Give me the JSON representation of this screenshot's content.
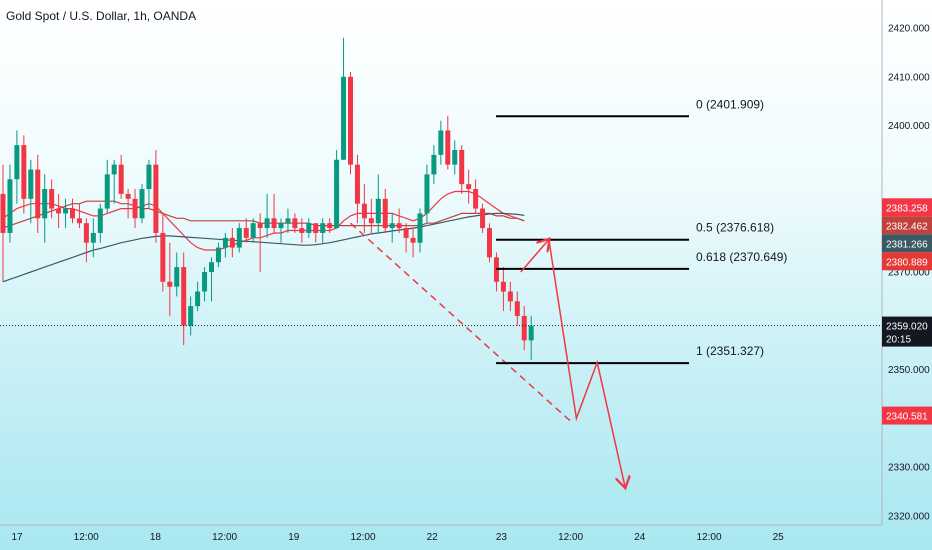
{
  "header": {
    "symbol": "Gold Spot / U.S. Dollar, 1h, OANDA"
  },
  "chart_data": {
    "type": "candlestick",
    "title": "Gold Spot / U.S. Dollar, 1h, OANDA",
    "ylim": [
      2320,
      2422
    ],
    "grid": false,
    "x_ticks": [
      "17",
      "12:00",
      "18",
      "12:00",
      "19",
      "12:00",
      "22",
      "23",
      "12:00",
      "24",
      "12:00",
      "25"
    ],
    "y_ticks": [
      "2420.000",
      "2410.000",
      "2400.000",
      "2370.000",
      "2350.000",
      "2330.000",
      "2320.000"
    ],
    "candles": [
      {
        "o": 2386,
        "h": 2392,
        "l": 2368,
        "c": 2378
      },
      {
        "o": 2378,
        "h": 2392,
        "l": 2376,
        "c": 2389
      },
      {
        "o": 2389,
        "h": 2399,
        "l": 2384,
        "c": 2396
      },
      {
        "o": 2396,
        "h": 2398,
        "l": 2382,
        "c": 2385
      },
      {
        "o": 2385,
        "h": 2393,
        "l": 2380,
        "c": 2391
      },
      {
        "o": 2391,
        "h": 2394,
        "l": 2378,
        "c": 2381
      },
      {
        "o": 2381,
        "h": 2390,
        "l": 2376,
        "c": 2387
      },
      {
        "o": 2387,
        "h": 2389,
        "l": 2381,
        "c": 2383
      },
      {
        "o": 2383,
        "h": 2386,
        "l": 2379,
        "c": 2382
      },
      {
        "o": 2382,
        "h": 2385,
        "l": 2379,
        "c": 2383
      },
      {
        "o": 2383,
        "h": 2385,
        "l": 2380,
        "c": 2381
      },
      {
        "o": 2381,
        "h": 2384,
        "l": 2379,
        "c": 2380
      },
      {
        "o": 2380,
        "h": 2381,
        "l": 2372,
        "c": 2376
      },
      {
        "o": 2376,
        "h": 2381,
        "l": 2373,
        "c": 2378
      },
      {
        "o": 2378,
        "h": 2384,
        "l": 2376,
        "c": 2383
      },
      {
        "o": 2383,
        "h": 2393,
        "l": 2382,
        "c": 2390
      },
      {
        "o": 2390,
        "h": 2393,
        "l": 2384,
        "c": 2392
      },
      {
        "o": 2392,
        "h": 2394,
        "l": 2385,
        "c": 2386
      },
      {
        "o": 2386,
        "h": 2387,
        "l": 2381,
        "c": 2385
      },
      {
        "o": 2385,
        "h": 2387,
        "l": 2379,
        "c": 2381
      },
      {
        "o": 2381,
        "h": 2388,
        "l": 2380,
        "c": 2387
      },
      {
        "o": 2387,
        "h": 2393,
        "l": 2383,
        "c": 2392
      },
      {
        "o": 2392,
        "h": 2395,
        "l": 2376,
        "c": 2378
      },
      {
        "o": 2378,
        "h": 2382,
        "l": 2366,
        "c": 2368
      },
      {
        "o": 2368,
        "h": 2376,
        "l": 2361,
        "c": 2367
      },
      {
        "o": 2367,
        "h": 2374,
        "l": 2365,
        "c": 2371
      },
      {
        "o": 2371,
        "h": 2374,
        "l": 2355,
        "c": 2359
      },
      {
        "o": 2359,
        "h": 2365,
        "l": 2357,
        "c": 2363
      },
      {
        "o": 2363,
        "h": 2368,
        "l": 2362,
        "c": 2366
      },
      {
        "o": 2366,
        "h": 2371,
        "l": 2364,
        "c": 2370
      },
      {
        "o": 2370,
        "h": 2373,
        "l": 2364,
        "c": 2372
      },
      {
        "o": 2372,
        "h": 2376,
        "l": 2371,
        "c": 2375
      },
      {
        "o": 2375,
        "h": 2378,
        "l": 2373,
        "c": 2377
      },
      {
        "o": 2377,
        "h": 2379,
        "l": 2373,
        "c": 2375
      },
      {
        "o": 2375,
        "h": 2380,
        "l": 2374,
        "c": 2379
      },
      {
        "o": 2379,
        "h": 2381,
        "l": 2376,
        "c": 2377
      },
      {
        "o": 2377,
        "h": 2381,
        "l": 2376,
        "c": 2380
      },
      {
        "o": 2380,
        "h": 2382,
        "l": 2370,
        "c": 2379
      },
      {
        "o": 2379,
        "h": 2386,
        "l": 2377,
        "c": 2381
      },
      {
        "o": 2381,
        "h": 2386,
        "l": 2378,
        "c": 2379
      },
      {
        "o": 2379,
        "h": 2381,
        "l": 2376,
        "c": 2380
      },
      {
        "o": 2380,
        "h": 2383,
        "l": 2378,
        "c": 2381
      },
      {
        "o": 2381,
        "h": 2382,
        "l": 2378,
        "c": 2379
      },
      {
        "o": 2379,
        "h": 2381,
        "l": 2376,
        "c": 2378
      },
      {
        "o": 2378,
        "h": 2381,
        "l": 2377,
        "c": 2380
      },
      {
        "o": 2380,
        "h": 2380,
        "l": 2376,
        "c": 2378
      },
      {
        "o": 2378,
        "h": 2381,
        "l": 2376,
        "c": 2380
      },
      {
        "o": 2380,
        "h": 2381,
        "l": 2378,
        "c": 2379
      },
      {
        "o": 2379,
        "h": 2395,
        "l": 2379,
        "c": 2393
      },
      {
        "o": 2393,
        "h": 2418,
        "l": 2393,
        "c": 2410
      },
      {
        "o": 2410,
        "h": 2411,
        "l": 2390,
        "c": 2392
      },
      {
        "o": 2392,
        "h": 2394,
        "l": 2380,
        "c": 2384
      },
      {
        "o": 2384,
        "h": 2388,
        "l": 2378,
        "c": 2381
      },
      {
        "o": 2381,
        "h": 2385,
        "l": 2378,
        "c": 2380
      },
      {
        "o": 2380,
        "h": 2390,
        "l": 2378,
        "c": 2385
      },
      {
        "o": 2385,
        "h": 2387,
        "l": 2378,
        "c": 2379
      },
      {
        "o": 2379,
        "h": 2382,
        "l": 2376,
        "c": 2380
      },
      {
        "o": 2380,
        "h": 2383,
        "l": 2378,
        "c": 2379
      },
      {
        "o": 2379,
        "h": 2380,
        "l": 2374,
        "c": 2377
      },
      {
        "o": 2377,
        "h": 2379,
        "l": 2373,
        "c": 2376
      },
      {
        "o": 2376,
        "h": 2383,
        "l": 2374,
        "c": 2382
      },
      {
        "o": 2382,
        "h": 2392,
        "l": 2380,
        "c": 2390
      },
      {
        "o": 2390,
        "h": 2396,
        "l": 2388,
        "c": 2394
      },
      {
        "o": 2394,
        "h": 2401,
        "l": 2392,
        "c": 2399
      },
      {
        "o": 2399,
        "h": 2402,
        "l": 2391,
        "c": 2392
      },
      {
        "o": 2392,
        "h": 2397,
        "l": 2390,
        "c": 2395
      },
      {
        "o": 2395,
        "h": 2396,
        "l": 2386,
        "c": 2388
      },
      {
        "o": 2388,
        "h": 2391,
        "l": 2384,
        "c": 2387
      },
      {
        "o": 2387,
        "h": 2389,
        "l": 2382,
        "c": 2383
      },
      {
        "o": 2383,
        "h": 2384,
        "l": 2378,
        "c": 2379
      },
      {
        "o": 2379,
        "h": 2380,
        "l": 2372,
        "c": 2373
      },
      {
        "o": 2373,
        "h": 2374,
        "l": 2366,
        "c": 2368
      },
      {
        "o": 2368,
        "h": 2371,
        "l": 2362,
        "c": 2366
      },
      {
        "o": 2366,
        "h": 2368,
        "l": 2362,
        "c": 2364
      },
      {
        "o": 2364,
        "h": 2366,
        "l": 2359,
        "c": 2361
      },
      {
        "o": 2361,
        "h": 2363,
        "l": 2354,
        "c": 2356
      },
      {
        "o": 2356,
        "h": 2361,
        "l": 2352,
        "c": 2359
      }
    ],
    "moving_averages": [
      {
        "color": "#f23645",
        "values": [
          2381,
          2382,
          2383,
          2383.5,
          2384,
          2384,
          2384,
          2384,
          2383.5,
          2383,
          2383,
          2382.5,
          2382,
          2381.5,
          2381.5,
          2382,
          2382.5,
          2383,
          2383,
          2383,
          2383.5,
          2384,
          2383.5,
          2382,
          2380.5,
          2379,
          2377.5,
          2376,
          2375,
          2374.5,
          2374.5,
          2374.5,
          2375,
          2375.5,
          2376,
          2376.5,
          2377,
          2377,
          2377.5,
          2378,
          2378,
          2378.5,
          2378.5,
          2378.5,
          2378.5,
          2378.5,
          2378.5,
          2378.5,
          2379,
          2380.5,
          2381.5,
          2382,
          2382,
          2382,
          2382,
          2382,
          2382,
          2381.5,
          2381,
          2380.5,
          2381,
          2382,
          2383.5,
          2385,
          2386,
          2386.5,
          2386.5,
          2386.5,
          2386,
          2385,
          2384,
          2383,
          2382,
          2381.5,
          2381,
          2380.5
        ]
      },
      {
        "color": "#c0423c",
        "values": [
          2379,
          2379.5,
          2380,
          2380.5,
          2381,
          2381.5,
          2382,
          2382.5,
          2383,
          2383.5,
          2384,
          2384,
          2384.5,
          2384.5,
          2384.5,
          2384.5,
          2384.5,
          2384,
          2384,
          2383.5,
          2383,
          2383,
          2382.5,
          2382,
          2381.5,
          2381,
          2381,
          2380.5,
          2380.5,
          2380.5,
          2380.5,
          2380.5,
          2380.5,
          2380.5,
          2380.5,
          2380.5,
          2380.5,
          2380,
          2380,
          2380,
          2380,
          2380,
          2380,
          2380,
          2380,
          2379.5,
          2379.5,
          2379.5,
          2379.5,
          2379.5,
          2379.5,
          2379.5,
          2379.5,
          2379.5,
          2379.5,
          2379.5,
          2379.5,
          2379.5,
          2379.5,
          2379.5,
          2379.5,
          2380,
          2380,
          2380.5,
          2381,
          2381.5,
          2382,
          2382,
          2382,
          2382,
          2382,
          2381.5,
          2381.5,
          2381,
          2381,
          2380.5
        ]
      },
      {
        "color": "#3c5a64",
        "values": [
          2368,
          2368.5,
          2369,
          2369.5,
          2370,
          2370.5,
          2371,
          2371.5,
          2372,
          2372.5,
          2373,
          2373.5,
          2374,
          2374.5,
          2374.8,
          2375.2,
          2375.6,
          2376,
          2376.3,
          2376.6,
          2376.9,
          2377.1,
          2377.3,
          2377.4,
          2377.4,
          2377.3,
          2377.2,
          2377.1,
          2377,
          2376.9,
          2376.8,
          2376.7,
          2376.6,
          2376.5,
          2376.4,
          2376.3,
          2376.2,
          2376.1,
          2376,
          2375.9,
          2375.8,
          2375.7,
          2375.6,
          2375.5,
          2375.5,
          2375.6,
          2375.8,
          2376,
          2376.3,
          2376.6,
          2376.9,
          2377.2,
          2377.5,
          2377.8,
          2378,
          2378.2,
          2378.4,
          2378.6,
          2378.8,
          2379,
          2379.2,
          2379.5,
          2379.8,
          2380.1,
          2380.4,
          2380.7,
          2381,
          2381.3,
          2381.5,
          2381.7,
          2381.9,
          2382,
          2382,
          2381.9,
          2381.8,
          2381.6
        ]
      }
    ],
    "fib_levels": [
      {
        "label": "0 (2401.909)",
        "value": 2401.909
      },
      {
        "label": "0.5 (2376.618)",
        "value": 2376.618
      },
      {
        "label": "0.618 (2370.649)",
        "value": 2370.649
      },
      {
        "label": "1 (2351.327)",
        "value": 2351.327
      }
    ],
    "price_tags": [
      {
        "text": "2383.258",
        "value": 2383.258,
        "bg": "#f23645",
        "fg": "#ffffff"
      },
      {
        "text": "2382.462",
        "value": 2382.462,
        "bg": "#c0423c",
        "fg": "#ffffff"
      },
      {
        "text": "2381.266",
        "value": 2381.266,
        "bg": "#3c5a64",
        "fg": "#ffffff"
      },
      {
        "text": "2380.889",
        "value": 2380.889,
        "bg": "#e53935",
        "fg": "#ffffff"
      },
      {
        "text": "2359.020",
        "value": 2359.02,
        "bg": "#131722",
        "fg": "#ffffff",
        "sub": "20:15"
      },
      {
        "text": "2340.581",
        "value": 2340.581,
        "bg": "#f23645",
        "fg": "#ffffff"
      }
    ],
    "current_price": 2359.02,
    "projection": [
      {
        "t": 74.5,
        "v": 2370
      },
      {
        "t": 78.5,
        "v": 2377
      },
      {
        "t": 82.5,
        "v": 2340
      },
      {
        "t": 85.5,
        "v": 2351.5
      },
      {
        "t": 89.5,
        "v": 2326
      }
    ],
    "trendline": {
      "from": {
        "t": 50,
        "v": 2380
      },
      "to": {
        "t": 82,
        "v": 2339
      }
    },
    "colors": {
      "up": "#089981",
      "down": "#f23645",
      "projection": "#f23645",
      "fib_line": "#000000"
    }
  }
}
